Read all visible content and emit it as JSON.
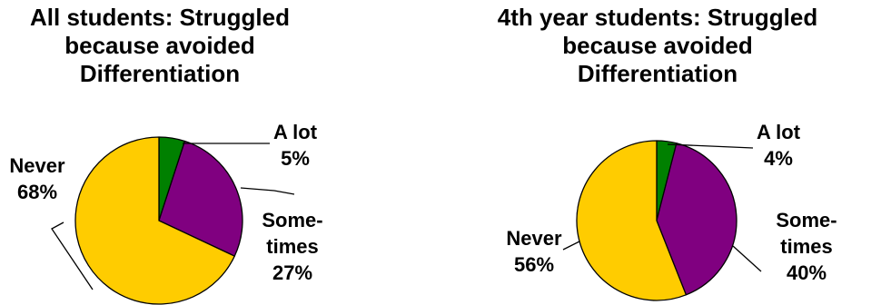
{
  "chart_data": [
    {
      "type": "pie",
      "title_lines": [
        "All students: Struggled",
        "because avoided",
        "Differentiation"
      ],
      "slices": [
        {
          "label_lines": [
            "A lot"
          ],
          "value": 5,
          "value_label": "5%",
          "color": "#008000"
        },
        {
          "label_lines": [
            "Some-",
            "times"
          ],
          "value": 27,
          "value_label": "27%",
          "color": "#800080"
        },
        {
          "label_lines": [
            "Never"
          ],
          "value": 68,
          "value_label": "68%",
          "color": "#FFCC00"
        }
      ]
    },
    {
      "type": "pie",
      "title_lines": [
        "4th year students: Struggled",
        "because avoided",
        "Differentiation"
      ],
      "slices": [
        {
          "label_lines": [
            "A lot"
          ],
          "value": 4,
          "value_label": "4%",
          "color": "#008000"
        },
        {
          "label_lines": [
            "Some-",
            "times"
          ],
          "value": 40,
          "value_label": "40%",
          "color": "#800080"
        },
        {
          "label_lines": [
            "Never"
          ],
          "value": 56,
          "value_label": "56%",
          "color": "#FFCC00"
        }
      ]
    }
  ]
}
